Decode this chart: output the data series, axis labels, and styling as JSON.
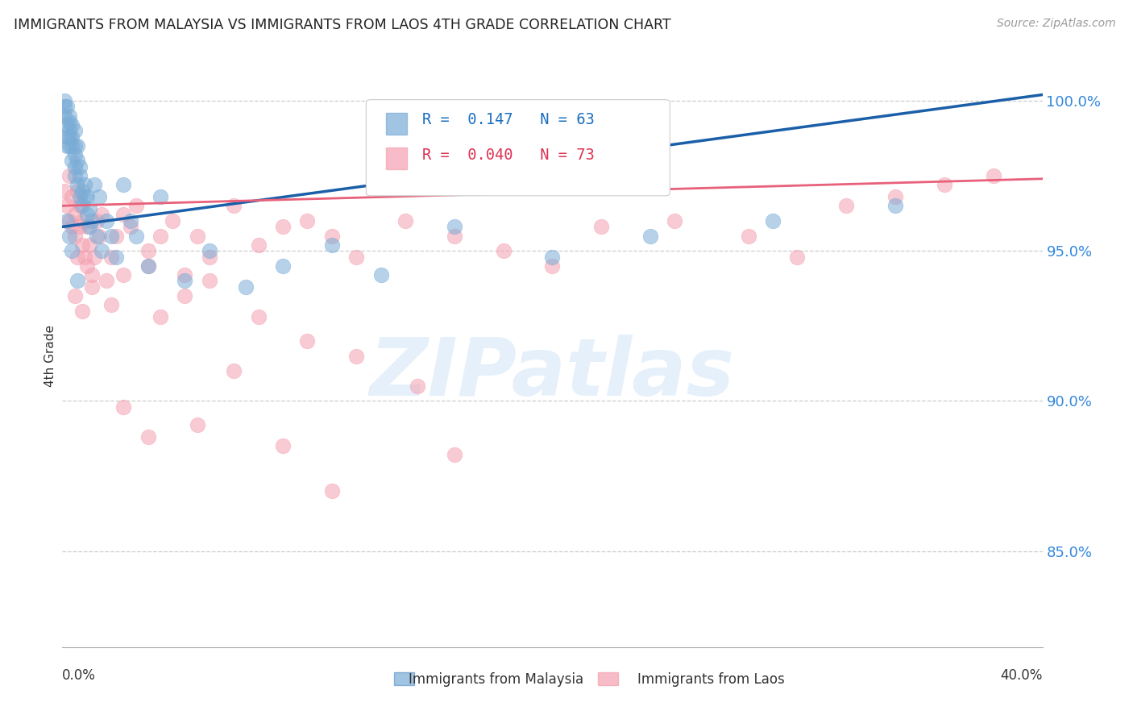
{
  "title": "IMMIGRANTS FROM MALAYSIA VS IMMIGRANTS FROM LAOS 4TH GRADE CORRELATION CHART",
  "source": "Source: ZipAtlas.com",
  "ylabel": "4th Grade",
  "ytick_labels": [
    "100.0%",
    "95.0%",
    "90.0%",
    "85.0%"
  ],
  "ytick_values": [
    1.0,
    0.95,
    0.9,
    0.85
  ],
  "xlim": [
    0.0,
    0.4
  ],
  "ylim": [
    0.818,
    1.012
  ],
  "legend_blue_r": "0.147",
  "legend_blue_n": "63",
  "legend_pink_r": "0.040",
  "legend_pink_n": "73",
  "blue_color": "#7AACD6",
  "pink_color": "#F4A0B0",
  "blue_line_color": "#1A5FA8",
  "pink_line_color": "#E8607A",
  "watermark": "ZIPatlas",
  "blue_trend_x0": 0.0,
  "blue_trend_y0": 0.958,
  "blue_trend_x1": 0.4,
  "blue_trend_y1": 1.002,
  "pink_trend_x0": 0.0,
  "pink_trend_y0": 0.965,
  "pink_trend_x1": 0.4,
  "pink_trend_y1": 0.974,
  "malaysia_x": [
    0.001,
    0.001,
    0.001,
    0.002,
    0.002,
    0.002,
    0.002,
    0.003,
    0.003,
    0.003,
    0.003,
    0.003,
    0.004,
    0.004,
    0.004,
    0.004,
    0.005,
    0.005,
    0.005,
    0.005,
    0.005,
    0.006,
    0.006,
    0.006,
    0.007,
    0.007,
    0.007,
    0.008,
    0.008,
    0.009,
    0.009,
    0.01,
    0.01,
    0.011,
    0.011,
    0.012,
    0.013,
    0.014,
    0.015,
    0.016,
    0.018,
    0.02,
    0.022,
    0.025,
    0.028,
    0.03,
    0.035,
    0.04,
    0.05,
    0.06,
    0.075,
    0.09,
    0.11,
    0.13,
    0.16,
    0.2,
    0.24,
    0.29,
    0.34,
    0.002,
    0.003,
    0.004,
    0.006
  ],
  "malaysia_y": [
    0.998,
    1.0,
    0.995,
    0.992,
    0.988,
    0.985,
    0.998,
    0.995,
    0.99,
    0.985,
    0.988,
    0.993,
    0.985,
    0.988,
    0.98,
    0.992,
    0.982,
    0.978,
    0.985,
    0.975,
    0.99,
    0.98,
    0.972,
    0.985,
    0.975,
    0.968,
    0.978,
    0.97,
    0.965,
    0.968,
    0.972,
    0.962,
    0.968,
    0.958,
    0.964,
    0.96,
    0.972,
    0.955,
    0.968,
    0.95,
    0.96,
    0.955,
    0.948,
    0.972,
    0.96,
    0.955,
    0.945,
    0.968,
    0.94,
    0.95,
    0.938,
    0.945,
    0.952,
    0.942,
    0.958,
    0.948,
    0.955,
    0.96,
    0.965,
    0.96,
    0.955,
    0.95,
    0.94
  ],
  "laos_x": [
    0.001,
    0.002,
    0.003,
    0.003,
    0.004,
    0.004,
    0.005,
    0.005,
    0.006,
    0.006,
    0.007,
    0.007,
    0.008,
    0.008,
    0.009,
    0.01,
    0.01,
    0.011,
    0.012,
    0.013,
    0.014,
    0.015,
    0.016,
    0.018,
    0.02,
    0.022,
    0.025,
    0.028,
    0.03,
    0.035,
    0.04,
    0.045,
    0.05,
    0.055,
    0.06,
    0.07,
    0.08,
    0.09,
    0.1,
    0.11,
    0.12,
    0.14,
    0.16,
    0.18,
    0.2,
    0.22,
    0.25,
    0.28,
    0.3,
    0.32,
    0.34,
    0.36,
    0.38,
    0.005,
    0.008,
    0.012,
    0.02,
    0.025,
    0.035,
    0.04,
    0.05,
    0.06,
    0.08,
    0.1,
    0.12,
    0.145,
    0.16,
    0.025,
    0.035,
    0.055,
    0.07,
    0.09,
    0.11
  ],
  "laos_y": [
    0.97,
    0.965,
    0.975,
    0.96,
    0.968,
    0.958,
    0.962,
    0.955,
    0.97,
    0.948,
    0.958,
    0.965,
    0.952,
    0.96,
    0.948,
    0.958,
    0.945,
    0.952,
    0.942,
    0.948,
    0.96,
    0.955,
    0.962,
    0.94,
    0.948,
    0.955,
    0.962,
    0.958,
    0.965,
    0.95,
    0.955,
    0.96,
    0.942,
    0.955,
    0.948,
    0.965,
    0.952,
    0.958,
    0.96,
    0.955,
    0.948,
    0.96,
    0.955,
    0.95,
    0.945,
    0.958,
    0.96,
    0.955,
    0.948,
    0.965,
    0.968,
    0.972,
    0.975,
    0.935,
    0.93,
    0.938,
    0.932,
    0.942,
    0.945,
    0.928,
    0.935,
    0.94,
    0.928,
    0.92,
    0.915,
    0.905,
    0.882,
    0.898,
    0.888,
    0.892,
    0.91,
    0.885,
    0.87
  ]
}
